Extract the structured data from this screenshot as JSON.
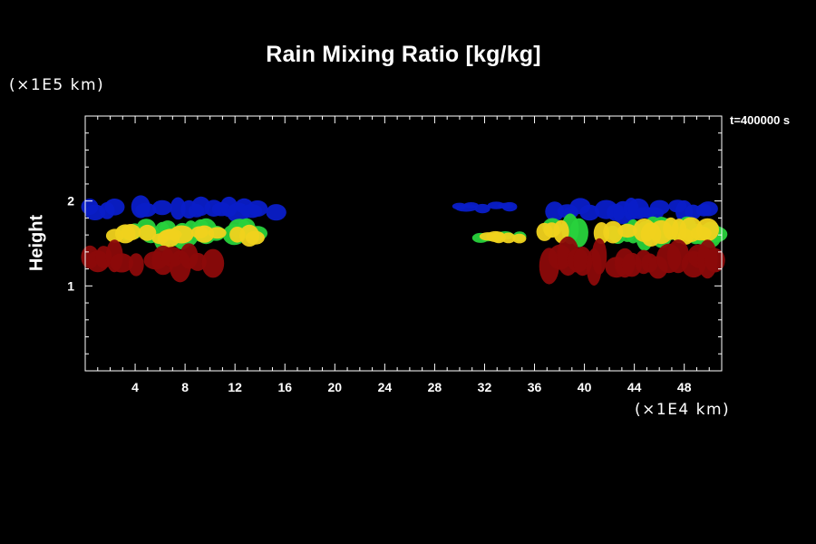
{
  "chart_data": {
    "type": "heatmap",
    "title": "Rain Mixing Ratio [kg/kg]",
    "ylabel": "Height",
    "y_multiplier": "(×1E5 km)",
    "x_multiplier": "(×1E4 km)",
    "time_label": "t=400000 s",
    "xlim": [
      0,
      51
    ],
    "ylim": [
      0,
      3
    ],
    "x_ticks": [
      4,
      8,
      12,
      16,
      20,
      24,
      28,
      32,
      36,
      40,
      44,
      48
    ],
    "y_ticks": [
      1,
      2
    ],
    "colors": {
      "blue": "#0a1ec8",
      "green": "#28d23c",
      "yellow": "#f0d21e",
      "orange": "#e6a014",
      "red": "#8c0a0a",
      "axis": "#ffffff",
      "background": "#000000"
    },
    "regions": [
      {
        "level": "blue",
        "x": [
          0,
          16.3
        ],
        "y": [
          1.78,
          2.03
        ]
      },
      {
        "level": "blue",
        "x": [
          29.5,
          34.5
        ],
        "y": [
          1.86,
          2.0
        ]
      },
      {
        "level": "blue",
        "x": [
          37.5,
          51
        ],
        "y": [
          1.78,
          2.03
        ]
      },
      {
        "level": "green",
        "x": [
          2.5,
          14
        ],
        "y": [
          1.48,
          1.8
        ]
      },
      {
        "level": "yellow",
        "x": [
          2.2,
          14
        ],
        "y": [
          1.47,
          1.72
        ]
      },
      {
        "level": "green",
        "x": [
          31.5,
          35
        ],
        "y": [
          1.5,
          1.65
        ]
      },
      {
        "level": "yellow",
        "x": [
          32,
          35
        ],
        "y": [
          1.5,
          1.63
        ]
      },
      {
        "level": "green",
        "x": [
          36.5,
          51
        ],
        "y": [
          1.48,
          1.82
        ]
      },
      {
        "level": "yellow",
        "x": [
          36.5,
          51
        ],
        "y": [
          1.48,
          1.78
        ]
      },
      {
        "level": "red",
        "x": [
          0,
          10.5
        ],
        "y": [
          1.12,
          1.48
        ]
      },
      {
        "level": "red",
        "x": [
          37,
          51
        ],
        "y": [
          1.08,
          1.52
        ]
      }
    ]
  }
}
